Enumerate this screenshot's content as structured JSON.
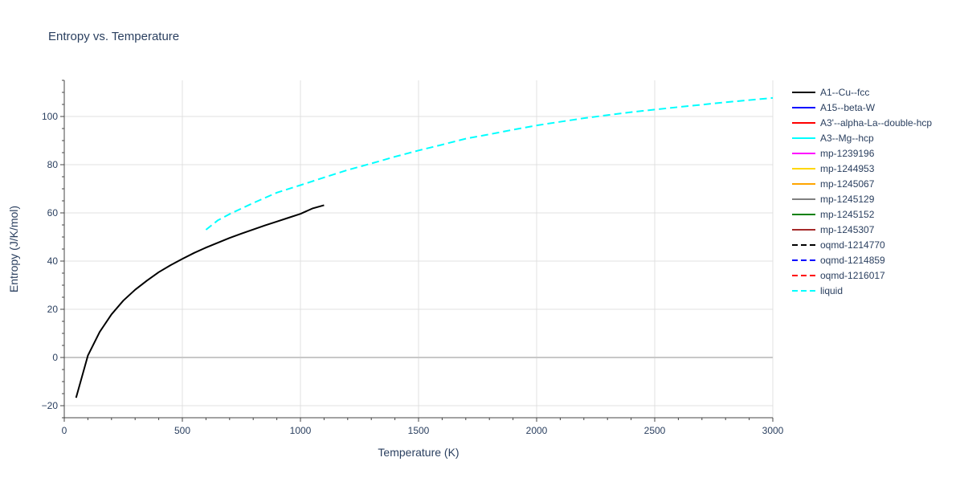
{
  "chart_data": {
    "type": "line",
    "title": "Entropy vs. Temperature",
    "xlabel": "Temperature (K)",
    "ylabel": "Entropy (J/K/mol)",
    "xlim": [
      0,
      3000
    ],
    "ylim": [
      -25,
      115
    ],
    "xticks": [
      0,
      500,
      1000,
      1500,
      2000,
      2500,
      3000
    ],
    "xtick_labels": [
      "0",
      "500",
      "1000",
      "1500",
      "2000",
      "2500",
      "3000"
    ],
    "yticks": [
      -20,
      0,
      20,
      40,
      60,
      80,
      100
    ],
    "ytick_labels": [
      "−20",
      "0",
      "20",
      "40",
      "60",
      "80",
      "100"
    ],
    "grid": true,
    "legend_position": "right",
    "series": [
      {
        "name": "A1--Cu--fcc",
        "color": "#000000",
        "dash": "solid",
        "x": [
          50,
          100,
          150,
          200,
          250,
          300,
          350,
          400,
          450,
          500,
          550,
          600,
          650,
          700,
          750,
          800,
          850,
          900,
          950,
          1000,
          1050,
          1100
        ],
        "y": [
          -16.7,
          0.8,
          10.6,
          17.9,
          23.6,
          28.1,
          31.9,
          35.4,
          38.3,
          40.9,
          43.4,
          45.6,
          47.6,
          49.6,
          51.4,
          53.1,
          54.8,
          56.4,
          58.0,
          59.6,
          61.8,
          63.2
        ]
      },
      {
        "name": "A15--beta-W",
        "color": "#0000ff",
        "dash": "solid",
        "x": [],
        "y": []
      },
      {
        "name": "A3'--alpha-La--double-hcp",
        "color": "#ff0000",
        "dash": "solid",
        "x": [],
        "y": []
      },
      {
        "name": "A3--Mg--hcp",
        "color": "#00ffff",
        "dash": "solid",
        "x": [],
        "y": []
      },
      {
        "name": "mp-1239196",
        "color": "#ff00ff",
        "dash": "solid",
        "x": [],
        "y": []
      },
      {
        "name": "mp-1244953",
        "color": "#ffd700",
        "dash": "solid",
        "x": [],
        "y": []
      },
      {
        "name": "mp-1245067",
        "color": "#ffa500",
        "dash": "solid",
        "x": [],
        "y": []
      },
      {
        "name": "mp-1245129",
        "color": "#808080",
        "dash": "solid",
        "x": [],
        "y": []
      },
      {
        "name": "mp-1245152",
        "color": "#008000",
        "dash": "solid",
        "x": [],
        "y": []
      },
      {
        "name": "mp-1245307",
        "color": "#a52a2a",
        "dash": "solid",
        "x": [],
        "y": []
      },
      {
        "name": "oqmd-1214770",
        "color": "#000000",
        "dash": "dash",
        "x": [],
        "y": []
      },
      {
        "name": "oqmd-1214859",
        "color": "#0000ff",
        "dash": "dash",
        "x": [],
        "y": []
      },
      {
        "name": "oqmd-1216017",
        "color": "#ff0000",
        "dash": "dash",
        "x": [],
        "y": []
      },
      {
        "name": "liquid",
        "color": "#00ffff",
        "dash": "dash",
        "x": [
          600,
          650,
          700,
          800,
          900,
          1000,
          1100,
          1200,
          1300,
          1400,
          1500,
          1600,
          1700,
          1800,
          1900,
          2000,
          2200,
          2400,
          2600,
          2800,
          3000
        ],
        "y": [
          53.0,
          56.9,
          59.5,
          64.1,
          68.4,
          71.5,
          74.7,
          77.8,
          80.5,
          83.3,
          85.9,
          88.3,
          90.8,
          92.6,
          94.5,
          96.3,
          99.3,
          101.8,
          103.9,
          105.9,
          107.7
        ]
      }
    ]
  }
}
